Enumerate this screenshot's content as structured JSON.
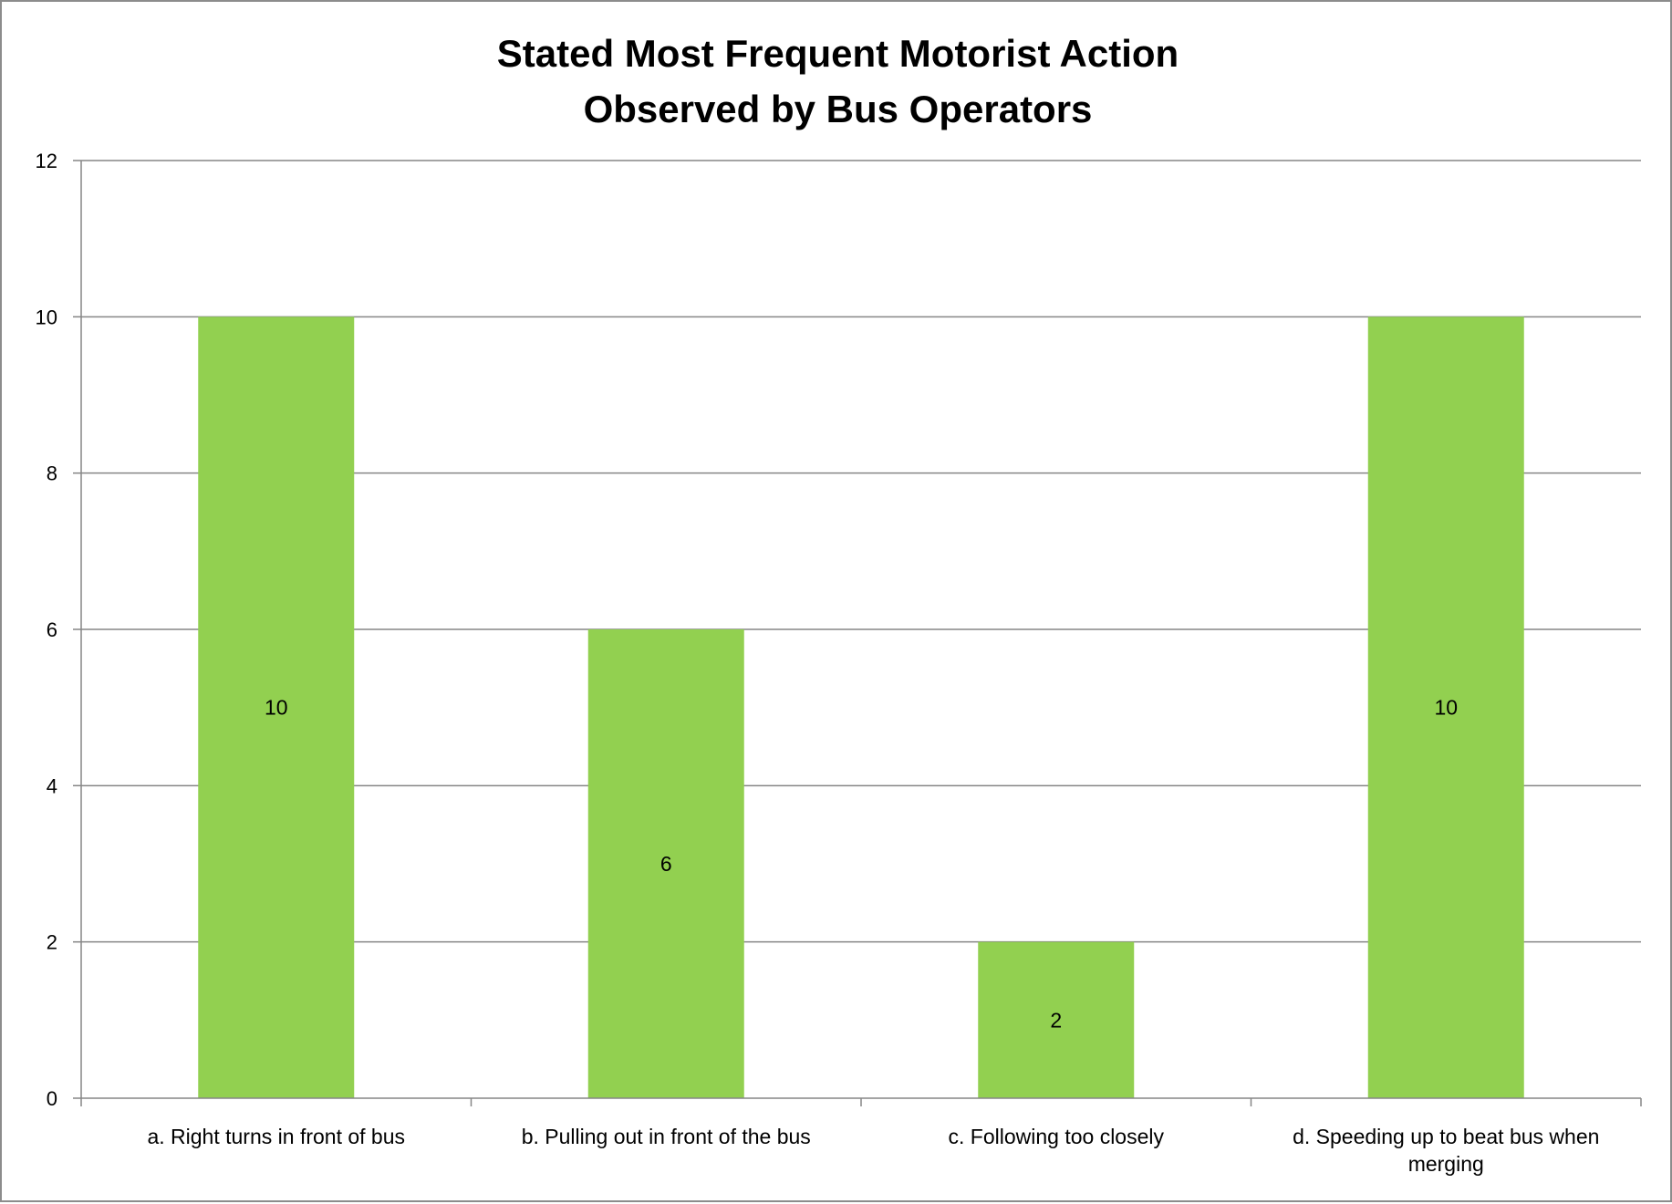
{
  "chart_data": {
    "type": "bar",
    "title": "Stated Most Frequent Motorist Action\nObserved by Bus Operators",
    "title_lines": [
      "Stated Most Frequent Motorist Action",
      "Observed by Bus Operators"
    ],
    "categories": [
      "a. Right turns in front of bus",
      "b. Pulling out in front of the bus",
      "c. Following too closely",
      "d.  Speeding up to beat bus when merging"
    ],
    "category_lines": [
      [
        "a. Right turns in front of bus"
      ],
      [
        "b. Pulling out in front of the bus"
      ],
      [
        "c. Following too closely"
      ],
      [
        "d.  Speeding up to beat bus when",
        "merging"
      ]
    ],
    "values": [
      10,
      6,
      2,
      10
    ],
    "data_labels": [
      "10",
      "6",
      "2",
      "10"
    ],
    "xlabel": "",
    "ylabel": "",
    "ylim": [
      0,
      12
    ],
    "yticks": [
      0,
      2,
      4,
      6,
      8,
      10,
      12
    ],
    "ytick_labels": [
      "0",
      "2",
      "4",
      "6",
      "8",
      "10",
      "12"
    ],
    "grid": true,
    "legend": "none",
    "colors": {
      "bar": "#92d050",
      "grid": "#868686",
      "axis": "#868686",
      "frame": "#8c8c8c"
    }
  }
}
